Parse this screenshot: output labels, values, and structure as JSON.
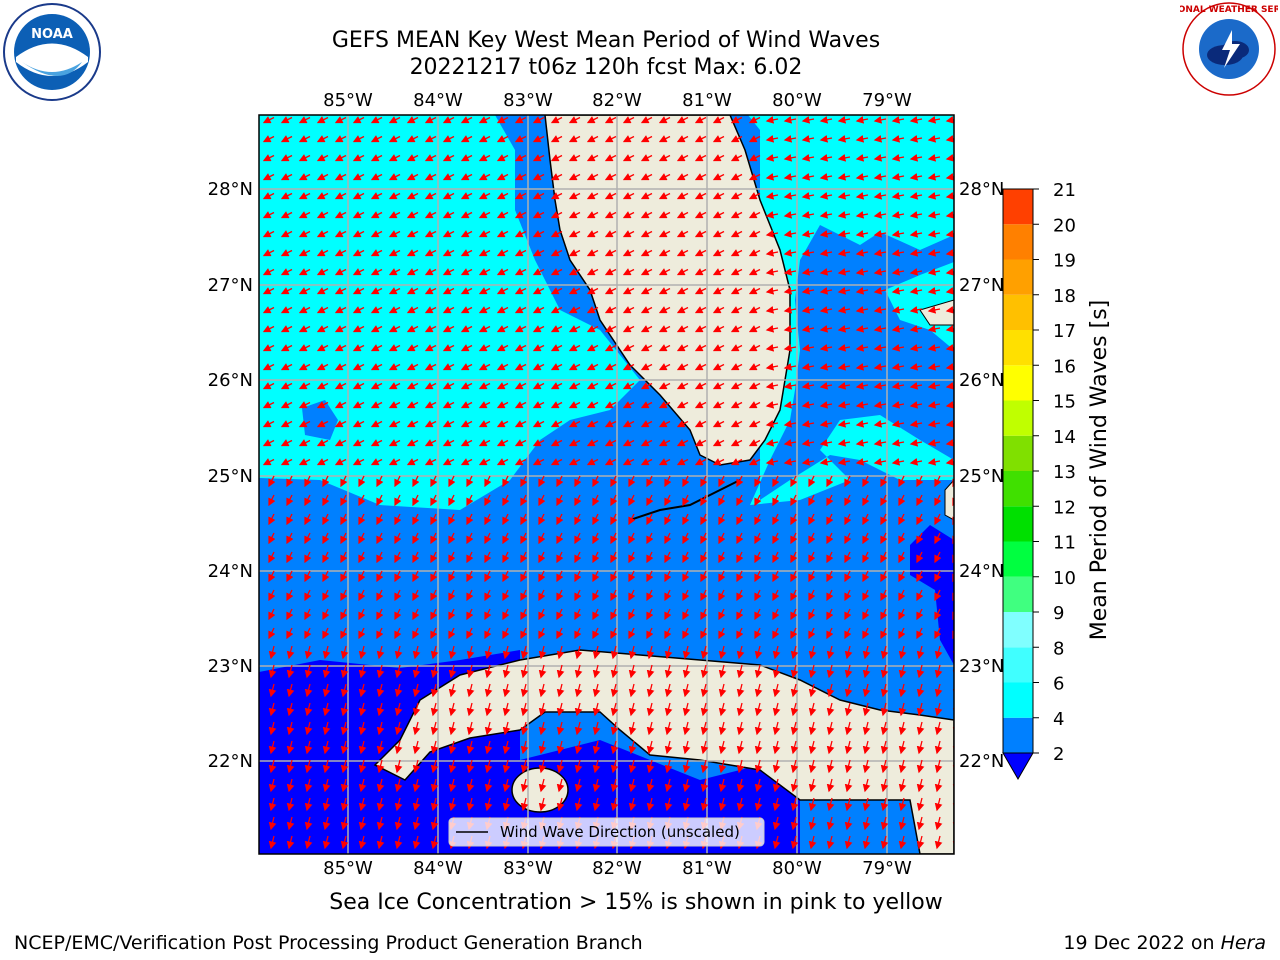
{
  "title": {
    "line1": "GEFS MEAN Key West Mean Period of Wind Waves",
    "line2": "20221217 t06z 120h fcst   Max: 6.02"
  },
  "map": {
    "lon_labels": [
      "85°W",
      "84°W",
      "83°W",
      "82°W",
      "81°W",
      "80°W",
      "79°W"
    ],
    "lat_labels": [
      "28°N",
      "27°N",
      "26°N",
      "25°N",
      "24°N",
      "23°N",
      "22°N"
    ],
    "legend_label": "Wind Wave Direction (unscaled)",
    "colors": {
      "water_light": "#00ffff",
      "water_mid": "#0080ff",
      "water_dark": "#0000ff",
      "land": "#eeecdc",
      "arrow": "#ff0000",
      "grid": "#b0b0b0"
    }
  },
  "colorbar": {
    "label": "Mean Period of Wind Waves [s]",
    "ticks": [
      "2",
      "4",
      "6",
      "8",
      "9",
      "10",
      "11",
      "12",
      "13",
      "14",
      "15",
      "16",
      "17",
      "18",
      "19",
      "20",
      "21"
    ],
    "colors": [
      "#0080ff",
      "#00ffff",
      "#40ffff",
      "#80ffff",
      "#40ff80",
      "#00ff40",
      "#00e000",
      "#40e000",
      "#80e000",
      "#c0ff00",
      "#ffff00",
      "#ffe000",
      "#ffc000",
      "#ffa000",
      "#ff8000",
      "#ff4000",
      "#ff1000",
      "#ff0000"
    ]
  },
  "notes": {
    "sea_ice": "Sea Ice Concentration > 15% is shown in pink to yellow",
    "credit": "NCEP/EMC/Verification Post Processing Product Generation Branch",
    "date": "19 Dec 2022 on",
    "machine": "Hera"
  },
  "logos": {
    "noaa": "NOAA",
    "nws": "NATIONAL WEATHER SERVICE"
  }
}
